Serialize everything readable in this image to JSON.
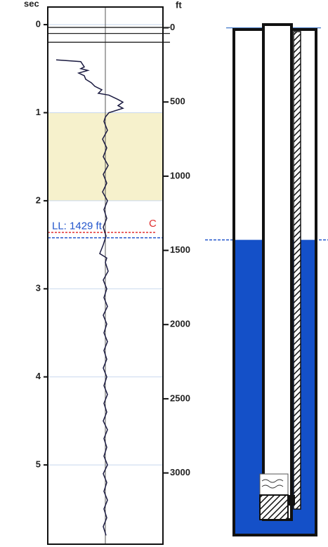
{
  "chart_data": {
    "type": "line",
    "y_label": "sec",
    "y2_label": "ft",
    "ylim": [
      -0.2,
      5.9
    ],
    "yticks": [
      0,
      1,
      2,
      3,
      4,
      5
    ],
    "y2lim": [
      -140,
      3480
    ],
    "y2ticks": [
      0,
      500,
      1000,
      1500,
      2000,
      2500,
      3000
    ],
    "grid": true,
    "highlight_band": [
      1,
      2
    ],
    "highlight_color": "#f6f1cc",
    "fluid_level": {
      "label": "LL: 1429 ft",
      "time": 2.42,
      "depth": 1429,
      "color": "#2255cc"
    },
    "collar": {
      "label": "C",
      "time": 2.36,
      "color": "#e03030"
    },
    "fluid_color": "#1450c8",
    "series": [
      {
        "color": "#1a1a40",
        "x": [
          0.4,
          0.42,
          0.48,
          0.5,
          0.52,
          0.55,
          0.58,
          0.62,
          0.66,
          0.7,
          0.74,
          0.78,
          0.8,
          0.85,
          0.88,
          0.92,
          0.95,
          1.0,
          1.05,
          1.1,
          1.2,
          1.3,
          1.4,
          1.5,
          1.6,
          1.7,
          1.8,
          1.9,
          2.0,
          2.1,
          2.2,
          2.3,
          2.4,
          2.5,
          2.6,
          2.65,
          2.7,
          2.8,
          2.9,
          3.0,
          3.1,
          3.2,
          3.3,
          3.4,
          3.5,
          3.6,
          3.7,
          3.8,
          3.9,
          4.0,
          4.1,
          4.2,
          4.3,
          4.4,
          4.5,
          4.6,
          4.7,
          4.8,
          4.9,
          5.0,
          5.1,
          5.2,
          5.3,
          5.4,
          5.5,
          5.6,
          5.7,
          5.8
        ],
        "values": [
          -70,
          -35,
          -30,
          -35,
          -25,
          -38,
          -30,
          -28,
          -20,
          -15,
          -5,
          -10,
          5,
          18,
          25,
          18,
          25,
          5,
          0,
          -2,
          3,
          -4,
          2,
          -3,
          4,
          -3,
          2,
          -4,
          3,
          -2,
          2,
          -3,
          1,
          -3,
          -8,
          2,
          0,
          4,
          -3,
          2,
          -2,
          3,
          -3,
          2,
          -2,
          3,
          -2,
          2,
          -3,
          2,
          -2,
          3,
          -2,
          2,
          -3,
          3,
          -2,
          2,
          -2,
          3,
          -3,
          2,
          -2,
          3,
          -2,
          2,
          -3,
          1
        ]
      }
    ]
  }
}
